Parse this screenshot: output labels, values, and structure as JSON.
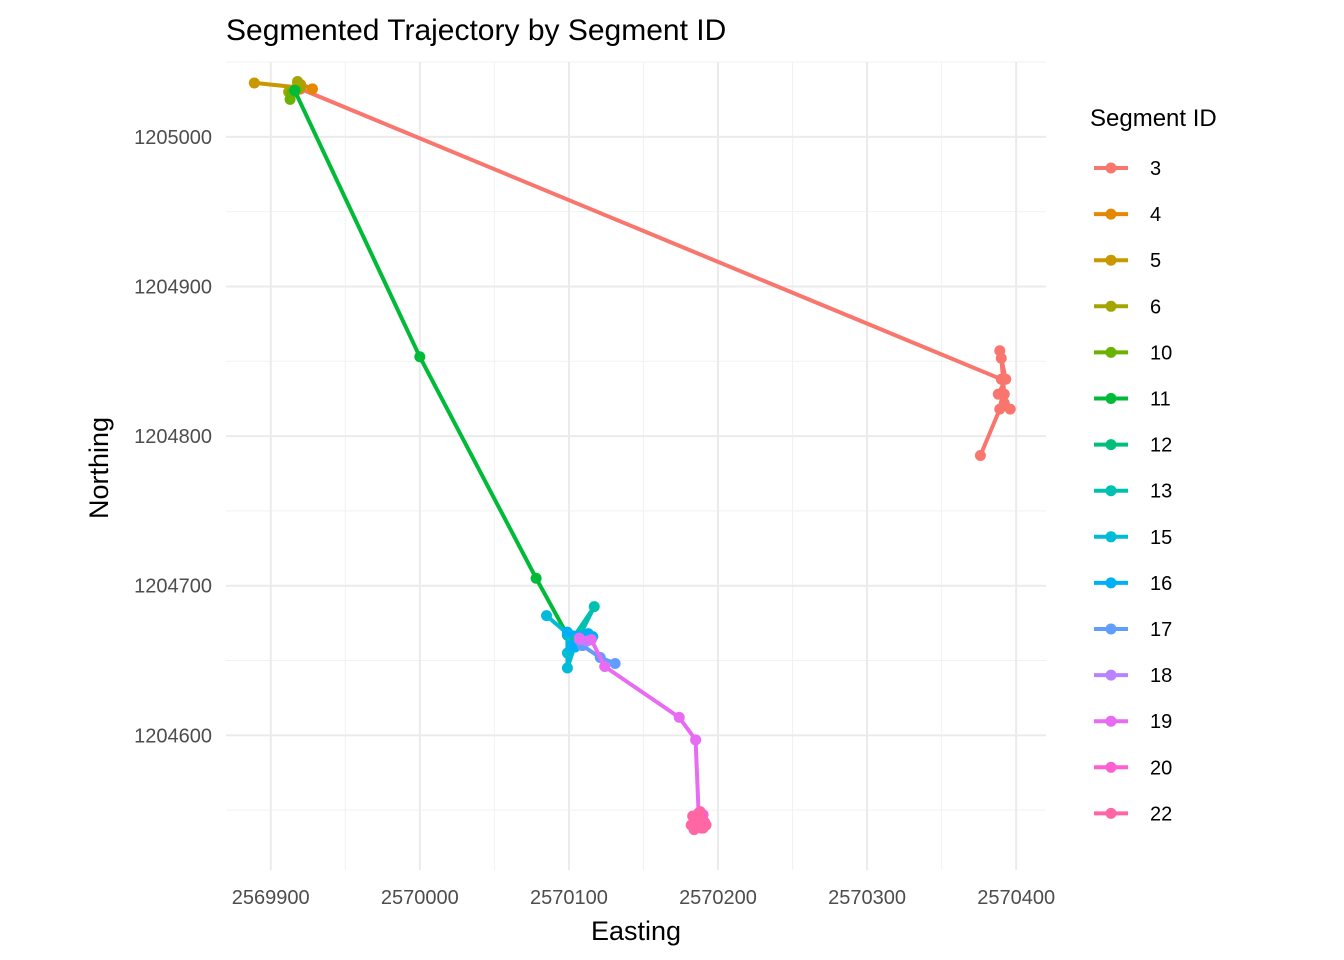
{
  "chart_data": {
    "type": "line",
    "title": "Segmented Trajectory by Segment ID",
    "xlabel": "Easting",
    "ylabel": "Northing",
    "xlim": [
      2569870,
      2570420
    ],
    "ylim": [
      1204510,
      1205050
    ],
    "x_ticks": [
      2569900,
      2570000,
      2570100,
      2570200,
      2570300,
      2570400
    ],
    "x_tick_labels": [
      "2569900",
      "2570000",
      "2570100",
      "2570200",
      "2570300",
      "2570400"
    ],
    "y_ticks": [
      1204600,
      1204700,
      1204800,
      1204900,
      1205000
    ],
    "y_tick_labels": [
      "1204600",
      "1204700",
      "1204800",
      "1204900",
      "1205000"
    ],
    "grid": true,
    "legend_title": "Segment ID",
    "legend_position": "right",
    "series": [
      {
        "name": "3",
        "color": "#F8766D",
        "points": [
          [
            2569920,
            1205032
          ],
          [
            2570390,
            1204838
          ],
          [
            2570392,
            1204828
          ],
          [
            2570390,
            1204852
          ],
          [
            2570389,
            1204857
          ],
          [
            2570393,
            1204838
          ],
          [
            2570388,
            1204828
          ],
          [
            2570392,
            1204822
          ],
          [
            2570396,
            1204818
          ],
          [
            2570389,
            1204818
          ],
          [
            2570376,
            1204787
          ]
        ]
      },
      {
        "name": "4",
        "color": "#E58700",
        "points": [
          [
            2569920,
            1205035
          ],
          [
            2569928,
            1205032
          ],
          [
            2569918,
            1205036
          ]
        ]
      },
      {
        "name": "5",
        "color": "#C99800",
        "points": [
          [
            2569889,
            1205036
          ],
          [
            2569918,
            1205033
          ]
        ]
      },
      {
        "name": "6",
        "color": "#A3A500",
        "points": [
          [
            2569912,
            1205030
          ],
          [
            2569918,
            1205037
          ],
          [
            2569920,
            1205033
          ]
        ]
      },
      {
        "name": "10",
        "color": "#6BB100",
        "points": [
          [
            2569913,
            1205025
          ],
          [
            2569917,
            1205031
          ],
          [
            2569914,
            1205029
          ]
        ]
      },
      {
        "name": "11",
        "color": "#00BA38",
        "points": [
          [
            2569916,
            1205031
          ],
          [
            2570000,
            1204853
          ],
          [
            2570078,
            1204705
          ],
          [
            2570099,
            1204667
          ]
        ]
      },
      {
        "name": "12",
        "color": "#00BF7D",
        "points": [
          [
            2570099,
            1204667
          ],
          [
            2570104,
            1204663
          ]
        ]
      },
      {
        "name": "13",
        "color": "#00C0AF",
        "points": [
          [
            2570102,
            1204664
          ],
          [
            2570117,
            1204686
          ],
          [
            2570108,
            1204668
          ]
        ]
      },
      {
        "name": "15",
        "color": "#00BCD8",
        "points": [
          [
            2570085,
            1204680
          ],
          [
            2570099,
            1204668
          ],
          [
            2570099,
            1204645
          ],
          [
            2570104,
            1204660
          ],
          [
            2570099,
            1204655
          ],
          [
            2570109,
            1204662
          ]
        ]
      },
      {
        "name": "16",
        "color": "#00B0F6",
        "points": [
          [
            2570099,
            1204669
          ],
          [
            2570113,
            1204668
          ],
          [
            2570102,
            1204660
          ],
          [
            2570108,
            1204663
          ],
          [
            2570116,
            1204666
          ],
          [
            2570104,
            1204659
          ]
        ]
      },
      {
        "name": "17",
        "color": "#619CFF",
        "points": [
          [
            2570109,
            1204660
          ],
          [
            2570121,
            1204652
          ],
          [
            2570131,
            1204648
          ]
        ]
      },
      {
        "name": "18",
        "color": "#B983FF",
        "points": [
          [
            2570107,
            1204664
          ],
          [
            2570112,
            1204663
          ]
        ]
      },
      {
        "name": "19",
        "color": "#E76BF3",
        "points": [
          [
            2570107,
            1204665
          ],
          [
            2570115,
            1204664
          ],
          [
            2570124,
            1204646
          ],
          [
            2570174,
            1204612
          ],
          [
            2570185,
            1204597
          ],
          [
            2570187,
            1204548
          ]
        ]
      },
      {
        "name": "20",
        "color": "#FD61D1",
        "points": [
          [
            2570187,
            1204548
          ],
          [
            2570186,
            1204545
          ],
          [
            2570190,
            1204547
          ]
        ]
      },
      {
        "name": "22",
        "color": "#FF67A4",
        "points": [
          [
            2570186,
            1204543
          ],
          [
            2570182,
            1204540
          ],
          [
            2570190,
            1204538
          ],
          [
            2570185,
            1204545
          ],
          [
            2570191,
            1204542
          ],
          [
            2570184,
            1204537
          ],
          [
            2570188,
            1204549
          ],
          [
            2570192,
            1204540
          ],
          [
            2570183,
            1204546
          ],
          [
            2570189,
            1204538
          ],
          [
            2570186,
            1204541
          ]
        ]
      }
    ]
  }
}
